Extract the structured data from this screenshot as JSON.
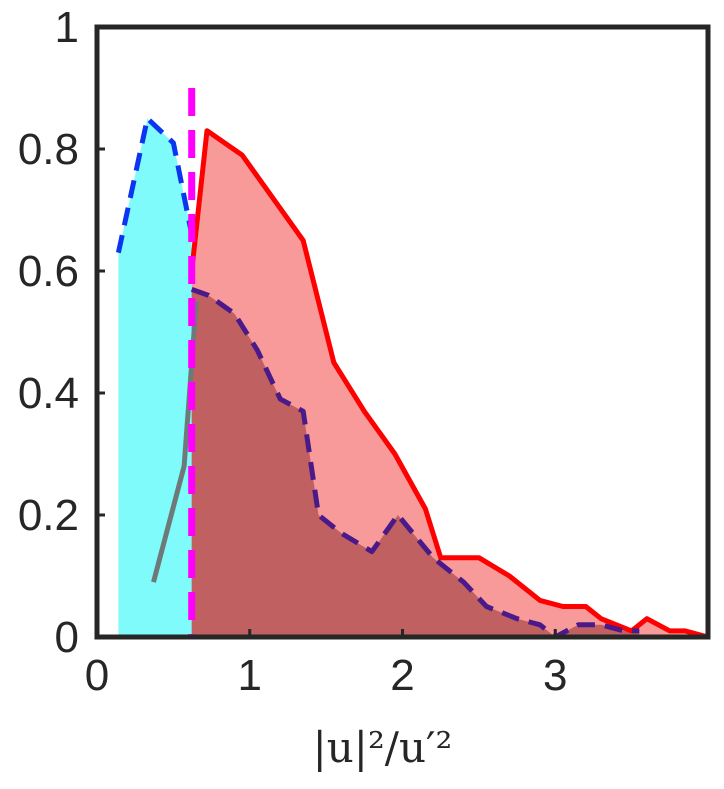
{
  "chart_data": {
    "type": "area",
    "title": "",
    "xlabel": "|u|²/u′²",
    "ylabel": "",
    "xlim": [
      0,
      4
    ],
    "ylim": [
      0,
      1
    ],
    "xticks": [
      0,
      1,
      2,
      3
    ],
    "xtick_labels": [
      "0",
      "1",
      "2",
      "3"
    ],
    "yticks": [
      0,
      0.2,
      0.4,
      0.6,
      0.8,
      1
    ],
    "ytick_labels": [
      "0",
      "0.2",
      "0.4",
      "0.6",
      "0.8",
      "1"
    ],
    "grid": false,
    "legend": "none",
    "threshold_x": 0.62,
    "series": [
      {
        "role": "cyan-area-dashed",
        "color": "#7ffbfb",
        "line_color": "#0b35f0",
        "style": "dashed",
        "x": [
          0.14,
          0.33,
          0.5,
          0.62
        ],
        "y": [
          0.63,
          0.85,
          0.81,
          0.66
        ]
      },
      {
        "role": "gray-line",
        "color": "#6e7a7a",
        "style": "solid",
        "x": [
          0.37,
          0.57,
          0.65
        ],
        "y": [
          0.09,
          0.28,
          0.55
        ]
      },
      {
        "role": "red-area-solid",
        "color": "#f99a9a",
        "line_color": "#ff0000",
        "style": "solid",
        "x": [
          0.62,
          0.72,
          0.95,
          1.15,
          1.35,
          1.55,
          1.75,
          1.95,
          2.15,
          2.25,
          2.5,
          2.7,
          2.9,
          3.05,
          3.2,
          3.3,
          3.5,
          3.6,
          3.75,
          3.85,
          4.0
        ],
        "y": [
          0.6,
          0.83,
          0.79,
          0.72,
          0.65,
          0.45,
          0.37,
          0.3,
          0.21,
          0.13,
          0.13,
          0.1,
          0.06,
          0.05,
          0.05,
          0.03,
          0.01,
          0.03,
          0.01,
          0.01,
          0.0
        ]
      },
      {
        "role": "darkred-area-dashed",
        "color": "#c06060",
        "line_color": "#4a1a8a",
        "style": "dashed",
        "x": [
          0.62,
          0.73,
          0.9,
          1.05,
          1.2,
          1.35,
          1.45,
          1.6,
          1.8,
          1.97,
          2.2,
          2.4,
          2.55,
          2.75,
          2.9,
          3.0,
          3.15,
          3.3,
          3.45,
          3.55
        ],
        "y": [
          0.57,
          0.56,
          0.53,
          0.47,
          0.39,
          0.37,
          0.2,
          0.17,
          0.14,
          0.2,
          0.13,
          0.09,
          0.05,
          0.03,
          0.02,
          0.0,
          0.02,
          0.02,
          0.01,
          0.01
        ]
      }
    ]
  }
}
